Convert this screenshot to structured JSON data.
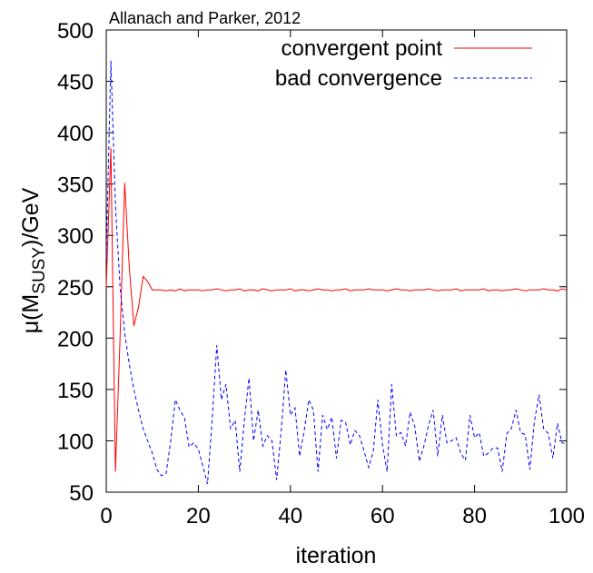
{
  "chart_data": {
    "type": "line",
    "title": "Allanach and Parker, 2012",
    "xlabel": "iteration",
    "ylabel_prefix": "μ(M",
    "ylabel_sub": "SUSY",
    "ylabel_suffix": ")/GeV",
    "xlim": [
      0,
      100
    ],
    "ylim": [
      50,
      500
    ],
    "x_ticks": [
      0,
      20,
      40,
      60,
      80,
      100
    ],
    "y_ticks": [
      50,
      100,
      150,
      200,
      250,
      300,
      350,
      400,
      450,
      500
    ],
    "grid": false,
    "legend_position": "top-right",
    "series": [
      {
        "name": "convergent point",
        "color": "#ff0000",
        "dash": "solid",
        "x": [
          0,
          1,
          2,
          3,
          4,
          5,
          6,
          7,
          8,
          9,
          10,
          11,
          12,
          13,
          14,
          15,
          16,
          17,
          18,
          19,
          20,
          21,
          22,
          23,
          24,
          25,
          26,
          27,
          28,
          29,
          30,
          31,
          32,
          33,
          34,
          35,
          36,
          37,
          38,
          39,
          40,
          41,
          42,
          43,
          44,
          45,
          46,
          47,
          48,
          49,
          50,
          51,
          52,
          53,
          54,
          55,
          56,
          57,
          58,
          59,
          60,
          61,
          62,
          63,
          64,
          65,
          66,
          67,
          68,
          69,
          70,
          71,
          72,
          73,
          74,
          75,
          76,
          77,
          78,
          79,
          80,
          81,
          82,
          83,
          84,
          85,
          86,
          87,
          88,
          89,
          90,
          91,
          92,
          93,
          94,
          95,
          96,
          97,
          98,
          99,
          100
        ],
        "values": [
          250,
          385,
          70,
          200,
          351,
          270,
          212,
          230,
          260,
          255,
          247,
          247,
          247,
          246,
          247,
          246,
          248,
          246,
          247,
          247,
          247,
          246,
          247,
          247,
          248,
          247,
          246,
          247,
          247,
          248,
          246,
          247,
          247,
          246,
          248,
          247,
          246,
          247,
          247,
          247,
          248,
          246,
          247,
          247,
          246,
          247,
          248,
          247,
          247,
          246,
          247,
          247,
          248,
          246,
          247,
          247,
          247,
          248,
          247,
          247,
          247,
          246,
          247,
          248,
          247,
          247,
          246,
          247,
          247,
          247,
          248,
          247,
          246,
          247,
          247,
          247,
          248,
          246,
          247,
          247,
          247,
          247,
          248,
          246,
          247,
          247,
          246,
          247,
          247,
          248,
          247,
          246,
          247,
          247,
          247,
          248,
          247,
          247,
          246,
          248,
          247
        ]
      },
      {
        "name": "bad convergence",
        "color": "#0000ff",
        "dash": "dashed",
        "x": [
          0,
          1,
          2,
          3,
          4,
          5,
          6,
          7,
          8,
          9,
          10,
          11,
          12,
          13,
          14,
          15,
          16,
          17,
          18,
          19,
          20,
          21,
          22,
          23,
          24,
          25,
          26,
          27,
          28,
          29,
          30,
          31,
          32,
          33,
          34,
          35,
          36,
          37,
          38,
          39,
          40,
          41,
          42,
          43,
          44,
          45,
          46,
          47,
          48,
          49,
          50,
          51,
          52,
          53,
          54,
          55,
          56,
          57,
          58,
          59,
          60,
          61,
          62,
          63,
          64,
          65,
          66,
          67,
          68,
          69,
          70,
          71,
          72,
          73,
          74,
          75,
          76,
          77,
          78,
          79,
          80,
          81,
          82,
          83,
          84,
          85,
          86,
          87,
          88,
          89,
          90,
          91,
          92,
          93,
          94,
          95,
          96,
          97,
          98,
          99,
          100
        ],
        "values": [
          278,
          470,
          330,
          250,
          205,
          175,
          150,
          130,
          112,
          100,
          88,
          72,
          66,
          68,
          100,
          140,
          130,
          122,
          94,
          98,
          92,
          75,
          58,
          120,
          193,
          140,
          155,
          112,
          120,
          70,
          120,
          161,
          100,
          130,
          95,
          105,
          100,
          62,
          110,
          169,
          125,
          132,
          85,
          110,
          140,
          130,
          70,
          125,
          111,
          123,
          83,
          120,
          118,
          96,
          110,
          105,
          90,
          74,
          90,
          140,
          96,
          70,
          155,
          105,
          108,
          95,
          128,
          114,
          80,
          95,
          115,
          130,
          85,
          125,
          98,
          100,
          103,
          88,
          81,
          125,
          103,
          108,
          85,
          88,
          93,
          93,
          70,
          107,
          112,
          130,
          108,
          106,
          72,
          119,
          145,
          112,
          107,
          83,
          117,
          98,
          97
        ]
      }
    ]
  }
}
